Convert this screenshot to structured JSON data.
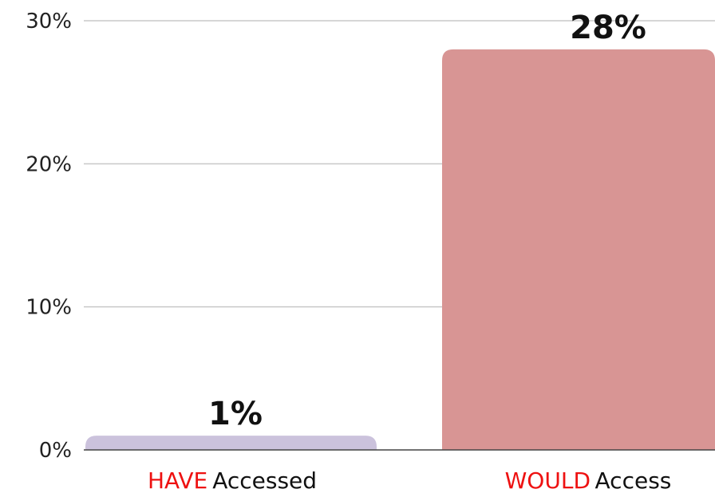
{
  "chart_data": {
    "type": "bar",
    "categories": [
      {
        "highlight": "HAVE",
        "rest": "Accessed"
      },
      {
        "highlight": "WOULD",
        "rest": "Access"
      }
    ],
    "values": [
      1,
      28
    ],
    "data_labels": [
      "1%",
      "28%"
    ],
    "ylim": [
      0,
      30
    ],
    "y_ticks": [
      {
        "value": 0,
        "label": "0%"
      },
      {
        "value": 10,
        "label": "10%"
      },
      {
        "value": 20,
        "label": "20%"
      },
      {
        "value": 30,
        "label": "30%"
      }
    ],
    "grid": true,
    "colors": {
      "bars": [
        "#cbc2dc",
        "#d89594"
      ],
      "highlight_text": "#ee1111",
      "category_text": "#111111"
    },
    "title": "",
    "xlabel": "",
    "ylabel": ""
  }
}
